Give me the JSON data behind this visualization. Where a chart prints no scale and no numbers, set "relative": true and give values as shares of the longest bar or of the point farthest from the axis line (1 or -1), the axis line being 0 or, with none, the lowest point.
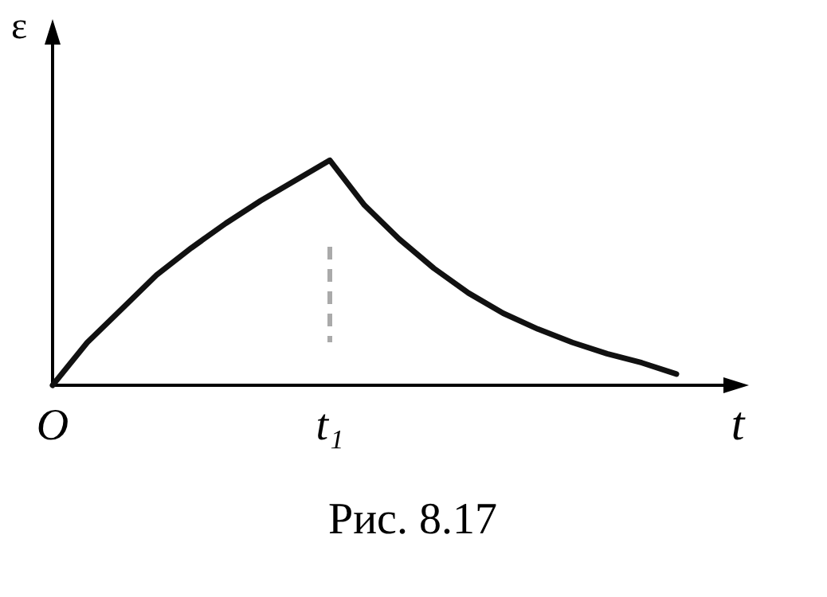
{
  "chart_data": {
    "type": "line",
    "ylabel": "ε",
    "xlabel": "t",
    "relative": true,
    "categories": [
      "O",
      null,
      null,
      null,
      null,
      null,
      null,
      null,
      "t₁",
      null,
      null,
      null,
      null,
      null,
      null,
      null,
      null,
      null,
      null
    ],
    "series": [
      {
        "color": "#111111",
        "values": [
          0,
          0.19,
          0.34,
          0.49,
          0.61,
          0.72,
          0.82,
          0.91,
          1,
          0.8,
          0.65,
          0.52,
          0.41,
          0.32,
          0.25,
          0.19,
          0.14,
          0.1,
          0.05
        ]
      }
    ],
    "ref_lines": [
      {
        "axis": "x",
        "value": "t₁",
        "label": null,
        "color": "#aaaaaa",
        "line_style": "dashed"
      }
    ],
    "annotations": [
      "Рис. 8.17"
    ]
  }
}
